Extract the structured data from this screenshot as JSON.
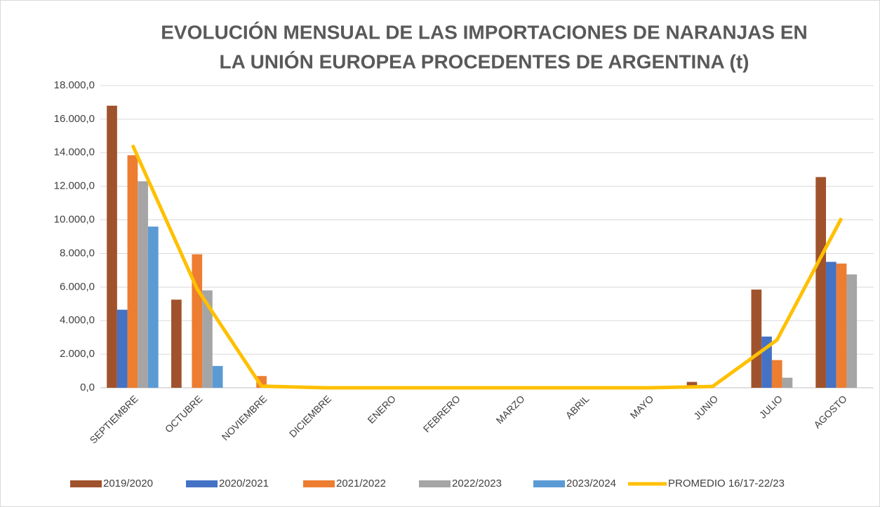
{
  "chart_data": {
    "type": "bar",
    "title": [
      "EVOLUCIÓN MENSUAL DE LAS IMPORTACIONES DE NARANJAS EN",
      "LA UNIÓN EUROPEA PROCEDENTES DE ARGENTINA (t)"
    ],
    "categories": [
      "SEPTIEMBRE",
      "OCTUBRE",
      "NOVIEMBRE",
      "DICIEMBRE",
      "ENERO",
      "FEBRERO",
      "MARZO",
      "ABRIL",
      "MAYO",
      "JUNIO",
      "JULIO",
      "AGOSTO"
    ],
    "series": [
      {
        "name": "2019/2020",
        "color": "#a0522d",
        "values": [
          16800,
          5250,
          0,
          0,
          0,
          0,
          0,
          0,
          0,
          350,
          5850,
          12550
        ]
      },
      {
        "name": "2020/2021",
        "color": "#4472c4",
        "values": [
          4650,
          0,
          0,
          0,
          0,
          0,
          0,
          0,
          0,
          0,
          3050,
          7500
        ]
      },
      {
        "name": "2021/2022",
        "color": "#ed7d31",
        "values": [
          13850,
          7950,
          700,
          0,
          0,
          0,
          0,
          0,
          0,
          0,
          1650,
          7400
        ]
      },
      {
        "name": "2022/2023",
        "color": "#a5a5a5",
        "values": [
          12300,
          5800,
          0,
          0,
          0,
          0,
          0,
          0,
          0,
          0,
          600,
          6750
        ]
      },
      {
        "name": "2023/2024",
        "color": "#5b9bd5",
        "values": [
          9600,
          1300,
          null,
          null,
          null,
          null,
          null,
          null,
          null,
          null,
          null,
          null
        ]
      },
      {
        "name": "PROMEDIO 16/17-22/23",
        "color": "#ffc000",
        "type": "line",
        "values": [
          14450,
          5900,
          100,
          0,
          0,
          0,
          0,
          0,
          0,
          80,
          2850,
          10100
        ]
      }
    ],
    "ylim": [
      0,
      18000
    ],
    "yticks": [
      {
        "value": 0,
        "label": "0,0"
      },
      {
        "value": 2000,
        "label": "2.000,0"
      },
      {
        "value": 4000,
        "label": "4.000,0"
      },
      {
        "value": 6000,
        "label": "6.000,0"
      },
      {
        "value": 8000,
        "label": "8.000,0"
      },
      {
        "value": 10000,
        "label": "10.000,0"
      },
      {
        "value": 12000,
        "label": "12.000,0"
      },
      {
        "value": 14000,
        "label": "14.000,0"
      },
      {
        "value": 16000,
        "label": "16.000,0"
      },
      {
        "value": 18000,
        "label": "18.000,0"
      }
    ],
    "grid": true,
    "legend": "bottom"
  }
}
